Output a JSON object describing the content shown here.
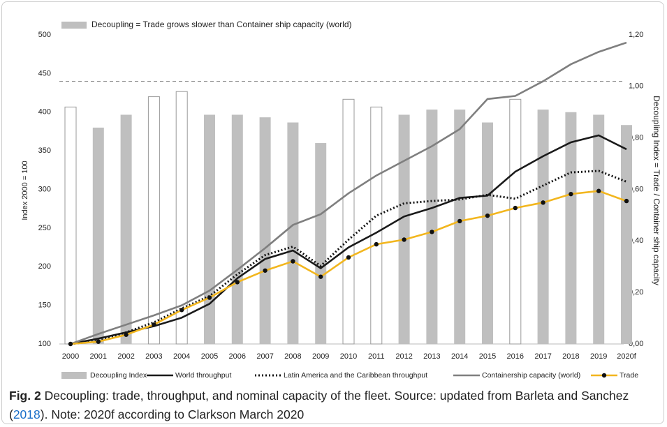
{
  "chart_data": {
    "type": "bar_line",
    "annotation": "Decoupling = Trade grows slower than Container ship capacity (world)",
    "y_label": "Index 2000 = 100",
    "y2_label": "Decoupling Index = Trade / Container ship capacity",
    "categories": [
      "2000",
      "2001",
      "2002",
      "2003",
      "2004",
      "2005",
      "2006",
      "2007",
      "2008",
      "2009",
      "2010",
      "2011",
      "2012",
      "2013",
      "2014",
      "2015",
      "2016",
      "2017",
      "2018",
      "2019",
      "2020f"
    ],
    "ylim": [
      100,
      500
    ],
    "yticks": [
      100,
      150,
      200,
      250,
      300,
      350,
      400,
      450,
      500
    ],
    "y2lim": [
      0,
      1.2
    ],
    "y2ticks": [
      {
        "value": 0,
        "label": "0,00"
      },
      {
        "value": 0.2,
        "label": "0,20"
      },
      {
        "value": 0.4,
        "label": "0,40"
      },
      {
        "value": 0.6,
        "label": "0,60"
      },
      {
        "value": 0.8,
        "label": "0,80"
      },
      {
        "value": 1,
        "label": "1,00"
      },
      {
        "value": 1.2,
        "label": "1,20"
      }
    ],
    "y_reference": 440,
    "series": [
      {
        "name": "Decoupling Index",
        "kind": "bar",
        "axis": "y2",
        "color": "#bfbfbf",
        "outlined_indices": [
          0,
          3,
          4,
          10,
          11,
          16
        ],
        "values": [
          0.92,
          0.84,
          0.89,
          0.96,
          0.98,
          0.89,
          0.89,
          0.88,
          0.86,
          0.78,
          0.95,
          0.92,
          0.89,
          0.91,
          0.91,
          0.86,
          0.95,
          0.91,
          0.9,
          0.89,
          0.85
        ]
      },
      {
        "name": "World throughput",
        "kind": "line",
        "color": "#1a1a1a",
        "style": "solid",
        "values": [
          100,
          107,
          115,
          123,
          134,
          152,
          185,
          210,
          221,
          198,
          225,
          244,
          265,
          276,
          289,
          292,
          323,
          343,
          361,
          370,
          352
        ]
      },
      {
        "name": "Latin America and the Caribbean throughput",
        "kind": "line",
        "color": "#111111",
        "style": "dotted",
        "values": [
          100,
          104,
          115,
          128,
          146,
          162,
          190,
          215,
          226,
          201,
          235,
          266,
          282,
          285,
          287,
          293,
          288,
          305,
          322,
          324,
          310
        ]
      },
      {
        "name": "Containership capacity (world)",
        "kind": "line",
        "color": "#7f7f7f",
        "style": "solid",
        "values": [
          100,
          113,
          125,
          137,
          150,
          169,
          196,
          224,
          254,
          268,
          295,
          318,
          337,
          356,
          378,
          417,
          421,
          440,
          462,
          478,
          490
        ]
      },
      {
        "name": "Trade",
        "kind": "line",
        "color": "#f2b61e",
        "style": "solid",
        "markers": true,
        "marker_color": "#111111",
        "values": [
          100,
          103,
          112,
          125,
          144,
          160,
          180,
          195,
          207,
          187,
          212,
          229,
          235,
          245,
          259,
          266,
          276,
          283,
          294,
          298,
          285
        ]
      }
    ]
  },
  "caption": {
    "label": "Fig. 2",
    "text_before": " Decoupling: trade, throughput, and nominal capacity of the fleet. Source: updated from Barleta and Sanchez (",
    "link": "2018",
    "text_after": "). Note: 2020f according to Clarkson March 2020"
  }
}
